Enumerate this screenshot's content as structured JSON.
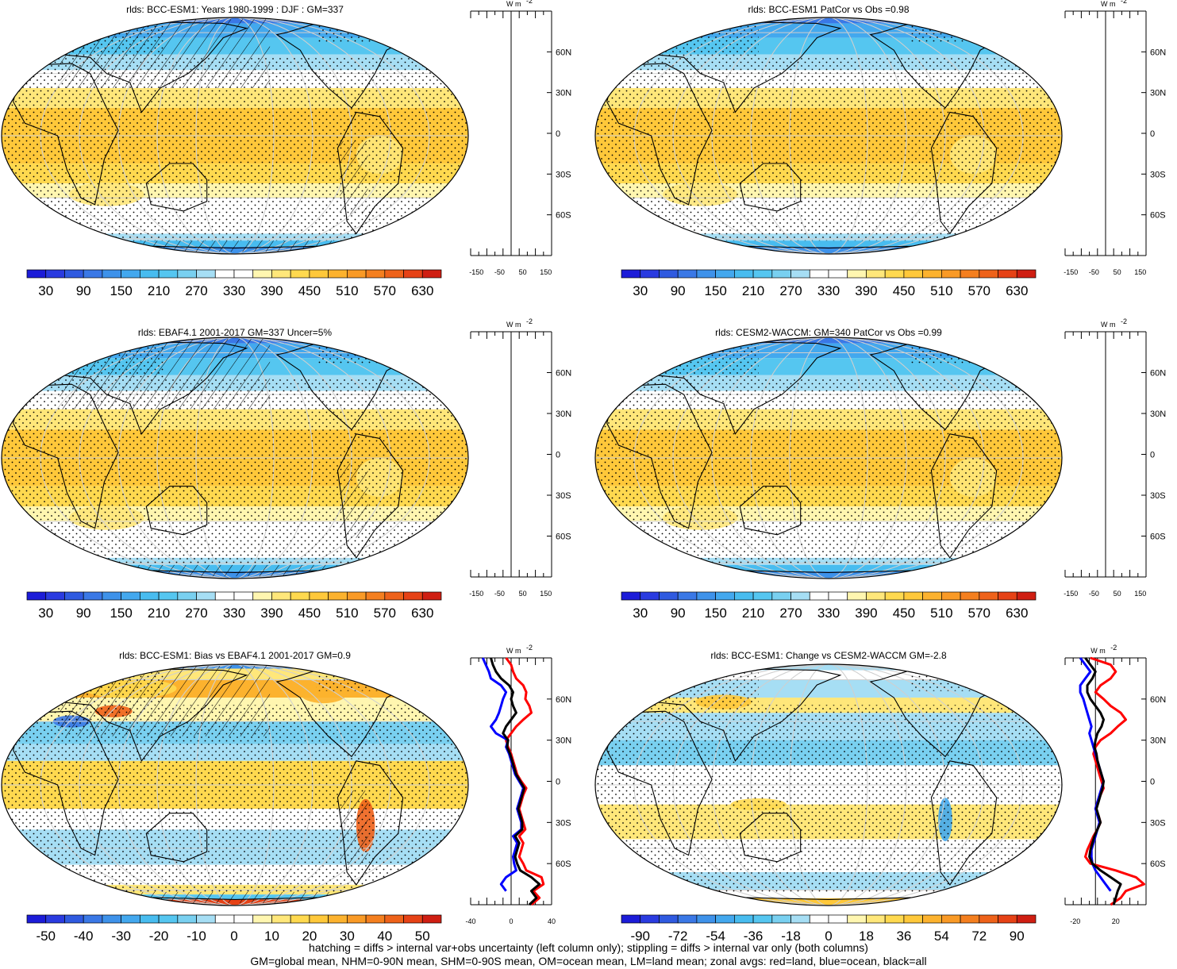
{
  "chart_data": [
    {
      "type": "heatmap",
      "title": "rlds: BCC-ESM1: Years 1980-1999 : DJF : GM=337",
      "colorbar": {
        "tick_labels": [
          "30",
          "90",
          "150",
          "210",
          "270",
          "330",
          "390",
          "450",
          "510",
          "570",
          "630"
        ],
        "range": [
          0,
          660
        ],
        "n_colors": 22
      },
      "zonal_panel": {
        "unit_label": "W m",
        "unit_superscript": "-2",
        "x_tick_labels": [
          "-150",
          "-50",
          "50",
          "150"
        ],
        "x_range": [
          -175,
          175
        ],
        "lat_labels": [
          "60N",
          "30N",
          "0",
          "30S",
          "60S"
        ],
        "lats": [
          60,
          30,
          0,
          -30,
          -60
        ],
        "series": []
      }
    },
    {
      "type": "heatmap",
      "title": "rlds: BCC-ESM1 PatCor vs Obs =0.98",
      "colorbar": {
        "tick_labels": [
          "30",
          "90",
          "150",
          "210",
          "270",
          "330",
          "390",
          "450",
          "510",
          "570",
          "630"
        ],
        "range": [
          0,
          660
        ],
        "n_colors": 22
      },
      "zonal_panel": {
        "unit_label": "W m",
        "unit_superscript": "-2",
        "x_tick_labels": [
          "-150",
          "-50",
          "50",
          "150"
        ],
        "x_range": [
          -175,
          175
        ],
        "lat_labels": [
          "60N",
          "30N",
          "0",
          "30S",
          "60S"
        ],
        "lats": [
          60,
          30,
          0,
          -30,
          -60
        ],
        "series": []
      }
    },
    {
      "type": "heatmap",
      "title": "rlds: EBAF4.1 2001-2017 GM=337 Uncer=5%",
      "colorbar": {
        "tick_labels": [
          "30",
          "90",
          "150",
          "210",
          "270",
          "330",
          "390",
          "450",
          "510",
          "570",
          "630"
        ],
        "range": [
          0,
          660
        ],
        "n_colors": 22
      },
      "zonal_panel": {
        "unit_label": "W m",
        "unit_superscript": "-2",
        "x_tick_labels": [
          "-150",
          "-50",
          "50",
          "150"
        ],
        "x_range": [
          -175,
          175
        ],
        "lat_labels": [
          "60N",
          "30N",
          "0",
          "30S",
          "60S"
        ],
        "lats": [
          60,
          30,
          0,
          -30,
          -60
        ],
        "series": []
      }
    },
    {
      "type": "heatmap",
      "title": "rlds: CESM2-WACCM: GM=340 PatCor vs Obs =0.99",
      "colorbar": {
        "tick_labels": [
          "30",
          "90",
          "150",
          "210",
          "270",
          "330",
          "390",
          "450",
          "510",
          "570",
          "630"
        ],
        "range": [
          0,
          660
        ],
        "n_colors": 22
      },
      "zonal_panel": {
        "unit_label": "W m",
        "unit_superscript": "-2",
        "x_tick_labels": [
          "-150",
          "-50",
          "50",
          "150"
        ],
        "x_range": [
          -175,
          175
        ],
        "lat_labels": [
          "60N",
          "30N",
          "0",
          "30S",
          "60S"
        ],
        "lats": [
          60,
          30,
          0,
          -30,
          -60
        ],
        "series": []
      }
    },
    {
      "type": "heatmap",
      "title": "rlds: BCC-ESM1: Bias vs EBAF4.1 2001-2017 GM=0.9",
      "colorbar": {
        "tick_labels": [
          "-50",
          "-40",
          "-30",
          "-20",
          "-10",
          "0",
          "10",
          "20",
          "30",
          "40",
          "50"
        ],
        "range": [
          -55,
          55
        ],
        "n_colors": 22
      },
      "zonal_panel": {
        "unit_label": "W m",
        "unit_superscript": "-2",
        "x_tick_labels": [
          "-40",
          "0",
          "40"
        ],
        "x_range": [
          -40,
          40
        ],
        "lat_labels": [
          "60N",
          "30N",
          "0",
          "30S",
          "60S"
        ],
        "lats": [
          60,
          30,
          0,
          -30,
          -60
        ],
        "series": [
          {
            "color": "#ff0000",
            "lat": [
              90,
              85,
              80,
              75,
              70,
              65,
              60,
              55,
              50,
              45,
              40,
              35,
              30,
              25,
              20,
              15,
              10,
              5,
              0,
              -5,
              -10,
              -15,
              -20,
              -25,
              -30,
              -35,
              -40,
              -45,
              -50,
              -55,
              -60,
              -65,
              -70,
              -75,
              -80,
              -85,
              -90
            ],
            "value": [
              -5,
              0,
              2,
              5,
              12,
              15,
              14,
              18,
              20,
              12,
              5,
              0,
              -5,
              -3,
              0,
              2,
              4,
              6,
              10,
              15,
              12,
              10,
              8,
              10,
              12,
              14,
              8,
              12,
              10,
              8,
              12,
              15,
              30,
              32,
              22,
              28,
              20
            ]
          },
          {
            "color": "#0000ff",
            "lat": [
              90,
              85,
              80,
              75,
              70,
              65,
              60,
              55,
              50,
              45,
              40,
              35,
              30,
              25,
              20,
              15,
              10,
              5,
              0,
              -5,
              -10,
              -15,
              -20,
              -25,
              -30,
              -35,
              -40,
              -45,
              -50,
              -55,
              -60,
              -65,
              -70,
              -75,
              -80
            ],
            "value": [
              -28,
              -25,
              -22,
              -20,
              -10,
              -5,
              -8,
              -10,
              -12,
              -15,
              -20,
              -15,
              -3,
              -5,
              -2,
              0,
              2,
              4,
              8,
              12,
              10,
              8,
              6,
              8,
              10,
              10,
              2,
              6,
              4,
              2,
              3,
              5,
              -5,
              -10,
              -5
            ]
          },
          {
            "color": "#000000",
            "lat": [
              90,
              85,
              80,
              75,
              70,
              65,
              60,
              55,
              50,
              45,
              40,
              35,
              30,
              25,
              20,
              15,
              10,
              5,
              0,
              -5,
              -10,
              -15,
              -20,
              -25,
              -30,
              -35,
              -40,
              -45,
              -50,
              -55,
              -60,
              -65,
              -70,
              -75,
              -80,
              -85,
              -90
            ],
            "value": [
              -20,
              -18,
              -15,
              -10,
              -2,
              2,
              0,
              2,
              5,
              0,
              -5,
              -8,
              -3,
              -4,
              -1,
              1,
              3,
              5,
              9,
              13,
              11,
              9,
              7,
              9,
              11,
              11,
              4,
              8,
              6,
              4,
              6,
              9,
              20,
              28,
              20,
              25,
              18
            ]
          }
        ]
      }
    },
    {
      "type": "heatmap",
      "title": "rlds: BCC-ESM1: Change vs CESM2-WACCM GM=-2.8",
      "colorbar": {
        "tick_labels": [
          "-90",
          "-72",
          "-54",
          "-36",
          "-18",
          "0",
          "18",
          "36",
          "54",
          "72",
          "90"
        ],
        "range": [
          -99,
          99
        ],
        "n_colors": 22
      },
      "zonal_panel": {
        "unit_label": "W m",
        "unit_superscript": "-2",
        "x_tick_labels": [
          "-20",
          "20"
        ],
        "x_range": [
          -30,
          50
        ],
        "lat_labels": [
          "60N",
          "30N",
          "0",
          "30S",
          "60S"
        ],
        "lats": [
          60,
          30,
          0,
          -30,
          -60
        ],
        "series": [
          {
            "color": "#ff0000",
            "lat": [
              90,
              85,
              80,
              75,
              70,
              65,
              60,
              55,
              50,
              45,
              40,
              35,
              30,
              25,
              20,
              15,
              10,
              5,
              0,
              -5,
              -10,
              -15,
              -20,
              -25,
              -30,
              -35,
              -40,
              -45,
              -50,
              -55,
              -60,
              -65,
              -70,
              -75,
              -80,
              -85,
              -90
            ],
            "value": [
              -5,
              15,
              20,
              15,
              5,
              0,
              8,
              15,
              25,
              30,
              22,
              15,
              5,
              0,
              -2,
              0,
              2,
              4,
              6,
              8,
              5,
              2,
              0,
              3,
              5,
              2,
              -2,
              -5,
              -8,
              -10,
              -5,
              20,
              40,
              48,
              30,
              25,
              15
            ]
          },
          {
            "color": "#0000ff",
            "lat": [
              90,
              85,
              80,
              75,
              70,
              65,
              60,
              55,
              50,
              45,
              40,
              35,
              30,
              25,
              20,
              15,
              10,
              5,
              0,
              -5,
              -10,
              -15,
              -20,
              -25,
              -30,
              -35,
              -40,
              -45,
              -50,
              -55,
              -60,
              -65,
              -70,
              -75,
              -80
            ],
            "value": [
              -15,
              -10,
              -5,
              -10,
              -15,
              -15,
              -12,
              -10,
              -8,
              -6,
              -4,
              -6,
              -4,
              -2,
              0,
              2,
              4,
              6,
              8,
              6,
              4,
              2,
              0,
              2,
              4,
              2,
              0,
              -2,
              -4,
              -4,
              -3,
              0,
              5,
              10,
              15
            ]
          },
          {
            "color": "#000000",
            "lat": [
              90,
              85,
              80,
              75,
              70,
              65,
              60,
              55,
              50,
              45,
              40,
              35,
              30,
              25,
              20,
              15,
              10,
              5,
              0,
              -5,
              -10,
              -15,
              -20,
              -25,
              -30,
              -35,
              -40,
              -45,
              -50,
              -55,
              -60,
              -65,
              -70,
              -75,
              -80,
              -85,
              -90
            ],
            "value": [
              -10,
              -5,
              0,
              -3,
              -8,
              -8,
              -5,
              0,
              5,
              8,
              6,
              2,
              0,
              -1,
              1,
              2,
              4,
              6,
              8,
              7,
              5,
              3,
              1,
              3,
              5,
              2,
              -1,
              -3,
              -5,
              -6,
              -3,
              5,
              15,
              25,
              22,
              20,
              18
            ]
          }
        ]
      }
    }
  ],
  "footer": {
    "line1": "hatching = diffs > internal var+obs uncertainty (left column only); stippling = diffs > internal var only (both columns)",
    "line2": "GM=global mean, NHM=0-90N mean, SHM=0-90S mean, OM=ocean mean, LM=land mean; zonal avgs: red=land, blue=ocean, black=all"
  },
  "colors": {
    "abs_palette": [
      "#1c1cd8",
      "#2a3be0",
      "#2f5ae0",
      "#3a78e6",
      "#3e92ea",
      "#43a8ee",
      "#48bcef",
      "#55c6f0",
      "#79d0f0",
      "#a6def4",
      "#ffffff",
      "#ffffff",
      "#fff6b0",
      "#ffe77a",
      "#ffd94f",
      "#ffc83a",
      "#fcb22e",
      "#f99a26",
      "#f47f1f",
      "#ee621a",
      "#e64216",
      "#cf1e12"
    ],
    "diff_palette": [
      "#1c1cd8",
      "#2a3be0",
      "#2f5ae0",
      "#3a78e6",
      "#3e92ea",
      "#43a8ee",
      "#48bcef",
      "#55c6f0",
      "#79d0f0",
      "#a6def4",
      "#ffffff",
      "#ffffff",
      "#fff6b0",
      "#ffe77a",
      "#ffd94f",
      "#ffc83a",
      "#fcb22e",
      "#f99a26",
      "#f47f1f",
      "#ee621a",
      "#e64216",
      "#cf1e12"
    ]
  }
}
